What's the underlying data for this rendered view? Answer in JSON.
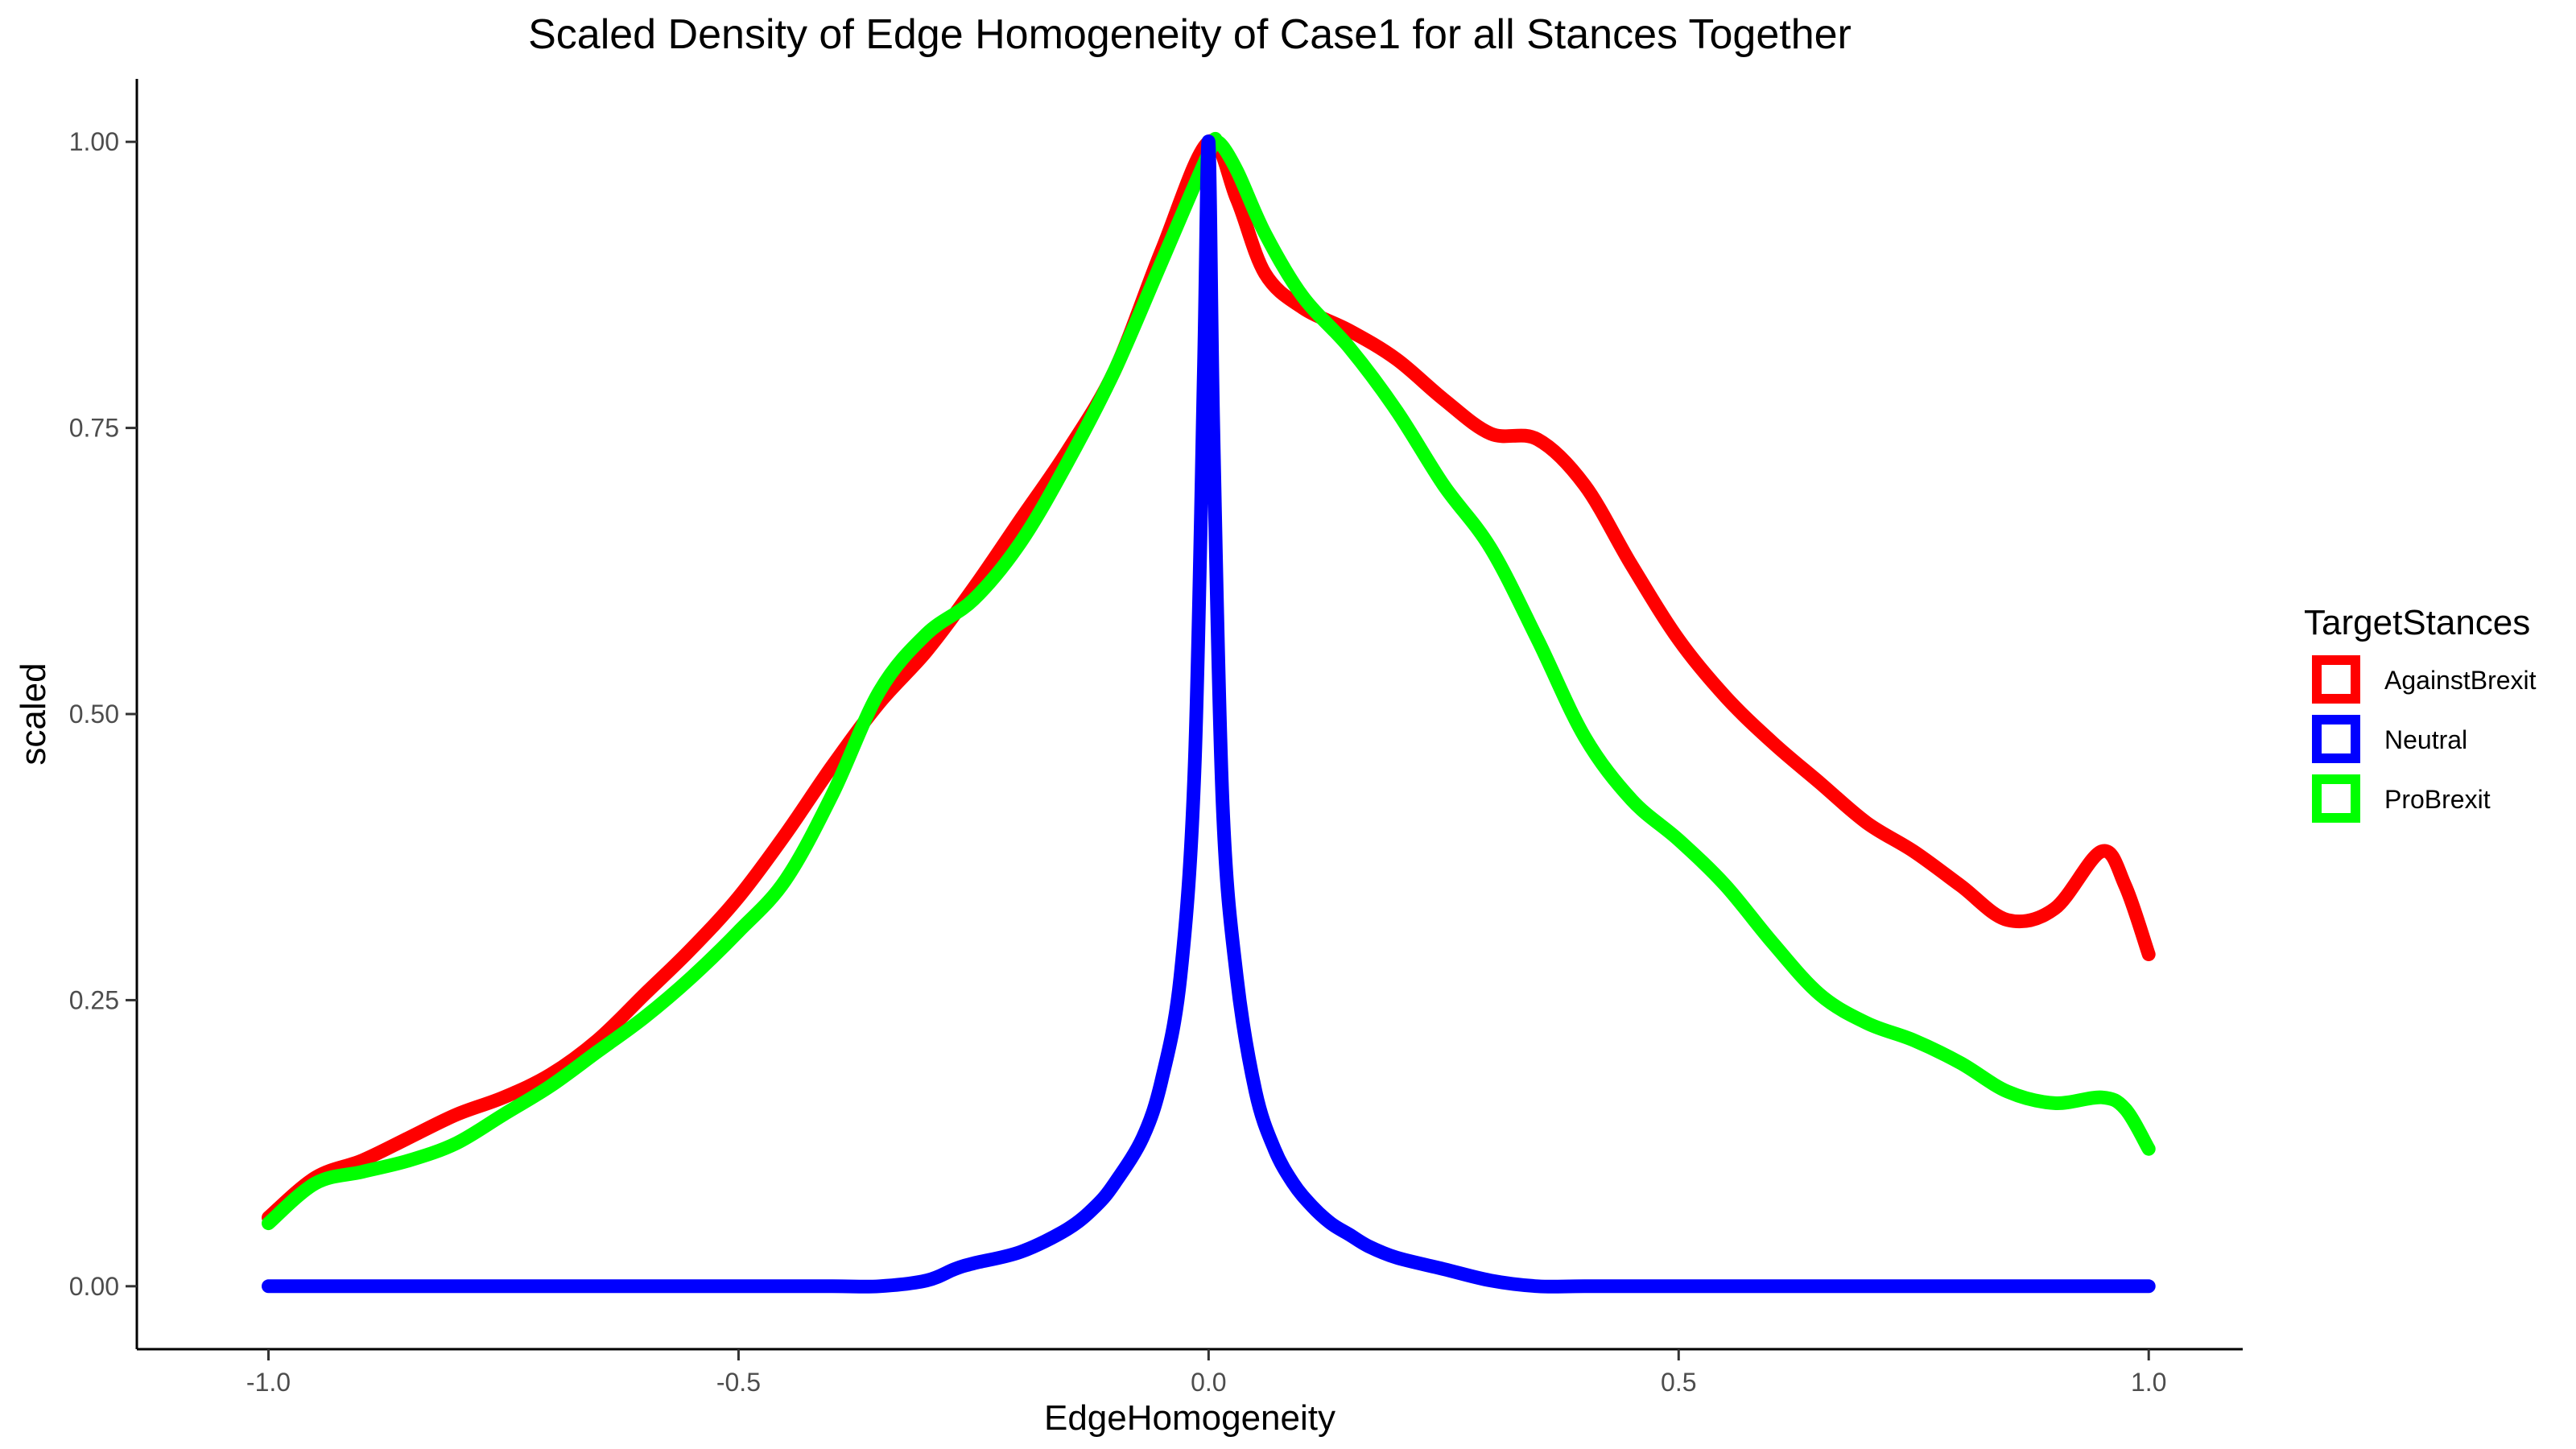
{
  "chart_data": {
    "type": "line",
    "title": "Scaled Density of Edge Homogeneity of Case1 for all Stances Together",
    "xlabel": "EdgeHomogeneity",
    "ylabel": "scaled",
    "xlim": [
      -1.14,
      1.1
    ],
    "ylim": [
      -0.055,
      1.055
    ],
    "xticks": [
      -1.0,
      -0.5,
      0.0,
      0.5,
      1.0
    ],
    "xtick_labels": [
      "-1.0",
      "-0.5",
      "0.0",
      "0.5",
      "1.0"
    ],
    "yticks": [
      0.0,
      0.25,
      0.5,
      0.75,
      1.0
    ],
    "ytick_labels": [
      "0.00",
      "0.25",
      "0.50",
      "0.75",
      "1.00"
    ],
    "grid": false,
    "legend": {
      "title": "TargetStances",
      "placement": "right"
    },
    "series": [
      {
        "name": "AgainstBrexit",
        "color": "#ff0000",
        "x": [
          -1.0,
          -0.95,
          -0.9,
          -0.85,
          -0.8,
          -0.75,
          -0.7,
          -0.65,
          -0.6,
          -0.55,
          -0.5,
          -0.45,
          -0.4,
          -0.35,
          -0.3,
          -0.25,
          -0.2,
          -0.15,
          -0.1,
          -0.05,
          0.0,
          0.03,
          0.06,
          0.1,
          0.15,
          0.2,
          0.25,
          0.3,
          0.35,
          0.4,
          0.45,
          0.5,
          0.55,
          0.6,
          0.65,
          0.7,
          0.75,
          0.8,
          0.85,
          0.9,
          0.95,
          0.975,
          1.0
        ],
        "y": [
          0.06,
          0.095,
          0.11,
          0.13,
          0.15,
          0.165,
          0.185,
          0.215,
          0.255,
          0.295,
          0.34,
          0.395,
          0.455,
          0.51,
          0.555,
          0.61,
          0.67,
          0.73,
          0.8,
          0.905,
          1.0,
          0.95,
          0.885,
          0.855,
          0.835,
          0.81,
          0.775,
          0.745,
          0.74,
          0.7,
          0.63,
          0.565,
          0.515,
          0.475,
          0.44,
          0.405,
          0.38,
          0.35,
          0.32,
          0.33,
          0.38,
          0.35,
          0.29
        ]
      },
      {
        "name": "Neutral",
        "color": "#0000ff",
        "x": [
          -1.0,
          -0.9,
          -0.8,
          -0.7,
          -0.6,
          -0.5,
          -0.4,
          -0.35,
          -0.3,
          -0.27,
          -0.25,
          -0.2,
          -0.15,
          -0.12,
          -0.1,
          -0.07,
          -0.05,
          -0.03,
          -0.015,
          -0.005,
          0.0,
          0.005,
          0.015,
          0.03,
          0.05,
          0.07,
          0.09,
          0.11,
          0.13,
          0.15,
          0.17,
          0.2,
          0.25,
          0.3,
          0.35,
          0.4,
          0.5,
          0.6,
          0.7,
          0.8,
          0.9,
          1.0
        ],
        "y": [
          0.0,
          0.0,
          0.0,
          0.0,
          0.0,
          0.0,
          0.0,
          0.0,
          0.005,
          0.015,
          0.02,
          0.03,
          0.05,
          0.07,
          0.09,
          0.13,
          0.18,
          0.27,
          0.45,
          0.8,
          1.0,
          0.75,
          0.42,
          0.27,
          0.17,
          0.12,
          0.09,
          0.07,
          0.055,
          0.045,
          0.035,
          0.025,
          0.015,
          0.005,
          0.0,
          0.0,
          0.0,
          0.0,
          0.0,
          0.0,
          0.0,
          0.0
        ]
      },
      {
        "name": "ProBrexit",
        "color": "#00ff00",
        "x": [
          -1.0,
          -0.95,
          -0.9,
          -0.85,
          -0.8,
          -0.75,
          -0.7,
          -0.65,
          -0.6,
          -0.55,
          -0.5,
          -0.45,
          -0.4,
          -0.35,
          -0.3,
          -0.25,
          -0.2,
          -0.15,
          -0.1,
          -0.05,
          0.0,
          0.01,
          0.03,
          0.06,
          0.1,
          0.15,
          0.2,
          0.25,
          0.3,
          0.35,
          0.4,
          0.45,
          0.5,
          0.55,
          0.6,
          0.65,
          0.7,
          0.75,
          0.8,
          0.85,
          0.9,
          0.95,
          0.975,
          1.0
        ],
        "y": [
          0.055,
          0.09,
          0.1,
          0.11,
          0.125,
          0.15,
          0.175,
          0.205,
          0.235,
          0.27,
          0.31,
          0.355,
          0.43,
          0.52,
          0.57,
          0.6,
          0.65,
          0.72,
          0.8,
          0.895,
          0.99,
          1.0,
          0.975,
          0.92,
          0.865,
          0.82,
          0.765,
          0.7,
          0.645,
          0.565,
          0.48,
          0.425,
          0.39,
          0.35,
          0.3,
          0.255,
          0.23,
          0.215,
          0.195,
          0.17,
          0.16,
          0.165,
          0.155,
          0.12
        ]
      }
    ]
  }
}
